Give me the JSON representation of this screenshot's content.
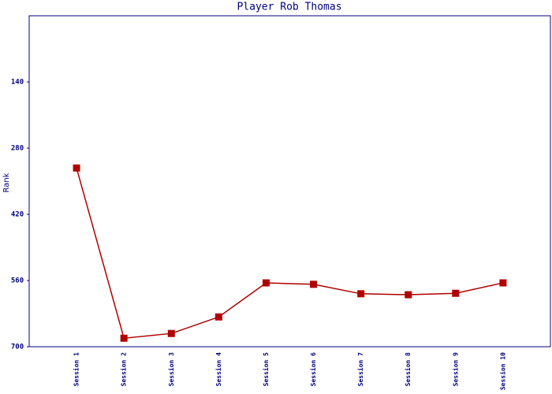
{
  "chart_data": {
    "type": "line",
    "title": "Player Rob Thomas",
    "y_label": "Rank",
    "categories": [
      "Session 1",
      "Session 2",
      "Session 3",
      "Session 4",
      "Session 5",
      "Session 6",
      "Session 7",
      "Session 8",
      "Session 9",
      "Session 10"
    ],
    "series": [
      {
        "name": "Rank",
        "color": "#b00000",
        "values": [
          322,
          682,
          672,
          637,
          565,
          568,
          588,
          590,
          587,
          565
        ]
      }
    ],
    "ylim": [
      700,
      0
    ],
    "yticks": [
      140,
      280,
      420,
      560,
      700
    ],
    "grid": false
  }
}
